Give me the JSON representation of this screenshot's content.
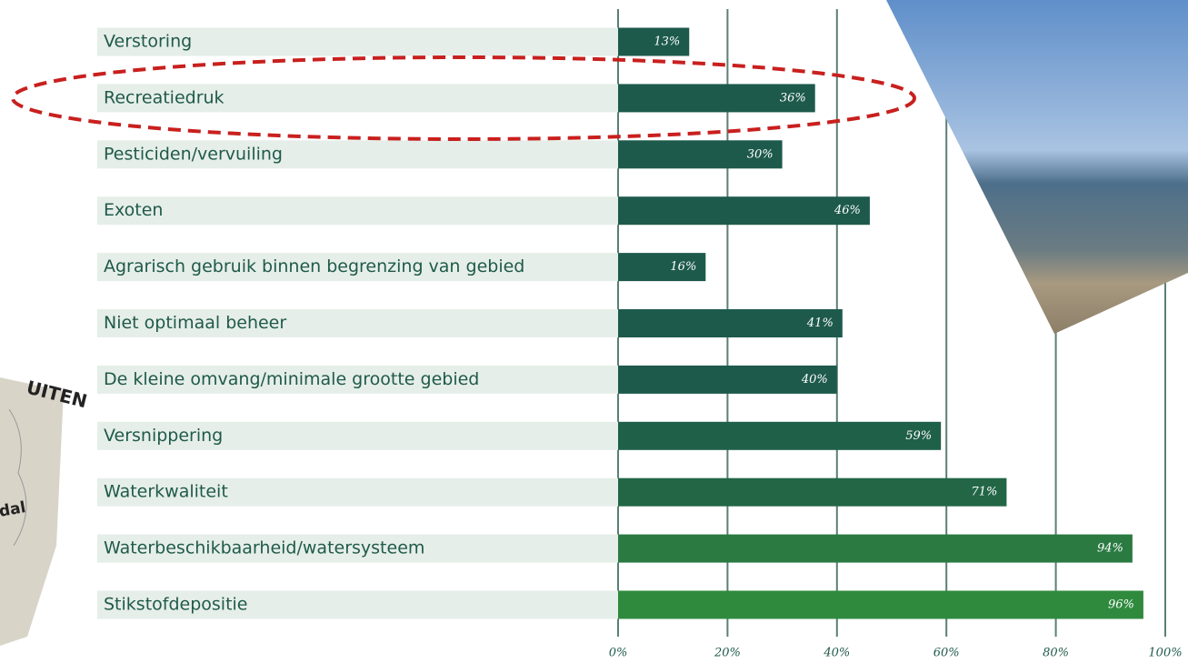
{
  "chart_data": {
    "type": "barh",
    "categories": [
      "Verstoring",
      "Recreatiedruk",
      "Pesticiden/vervuiling",
      "Exoten",
      "Agrarisch gebruik binnen begrenzing van gebied",
      "Niet optimaal beheer",
      "De kleine omvang/minimale grootte gebied",
      "Versnippering",
      "Waterkwaliteit",
      "Waterbeschikbaarheid/watersysteem",
      "Stikstofdepositie"
    ],
    "values": [
      13,
      36,
      30,
      46,
      16,
      41,
      40,
      59,
      71,
      94,
      96
    ],
    "value_labels": [
      "13%",
      "36%",
      "30%",
      "46%",
      "16%",
      "41%",
      "40%",
      "59%",
      "71%",
      "94%",
      "96%"
    ],
    "colors": [
      "#1d5a4c",
      "#1d5a4c",
      "#1d5a4c",
      "#1d5a4c",
      "#1d5a4c",
      "#1d5a4c",
      "#1d5a4c",
      "#1f6049",
      "#226646",
      "#2a7a42",
      "#2f8a3e"
    ],
    "xlim": [
      0,
      100
    ],
    "xticks": [
      {
        "value": 0,
        "label": "0%"
      },
      {
        "value": 20,
        "label": "20%"
      },
      {
        "value": 40,
        "label": "40%"
      },
      {
        "value": 60,
        "label": "60%"
      },
      {
        "value": 80,
        "label": "80%"
      },
      {
        "value": 100,
        "label": "100%"
      }
    ],
    "grid": true,
    "annotations": [
      "UITEN",
      "dal"
    ]
  }
}
